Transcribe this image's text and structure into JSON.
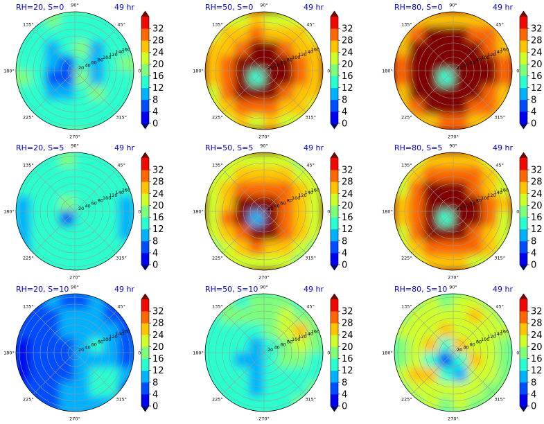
{
  "chart_data": {
    "type": "heatmap",
    "projection": "polar",
    "grid": true,
    "colormap": "jet",
    "colorbar": {
      "ticks": [
        "0",
        "4",
        "8",
        "12",
        "16",
        "20",
        "24",
        "28",
        "32"
      ],
      "range": [
        0,
        34
      ],
      "extend": "both",
      "colors": [
        "#00007f",
        "#0000f1",
        "#004dff",
        "#00b1ff",
        "#29ffce",
        "#7dff7a",
        "#ceff29",
        "#ffc400",
        "#ff6800",
        "#f10800",
        "#7f0000"
      ]
    },
    "angle_ticks": [
      "90°",
      "45°",
      "0°",
      "315°",
      "270°",
      "225°",
      "180°",
      "135°"
    ],
    "radial_ticks": [
      "20",
      "40",
      "60",
      "80",
      "100",
      "120",
      "140",
      "160"
    ],
    "panels": [
      {
        "title": "RH=20, S=0",
        "time": "49 hr",
        "rows": [
          [
            14,
            15,
            16,
            15,
            14,
            15,
            14,
            15
          ],
          [
            13,
            14,
            12,
            14,
            15,
            13,
            12,
            14
          ],
          [
            14,
            12,
            10,
            13,
            16,
            11,
            13,
            15
          ],
          [
            15,
            13,
            8,
            6,
            12,
            9,
            14,
            16
          ],
          [
            16,
            12,
            7,
            4,
            18,
            10,
            12,
            15
          ],
          [
            15,
            13,
            10,
            8,
            13,
            16,
            12,
            14
          ],
          [
            14,
            15,
            13,
            12,
            14,
            13,
            15,
            14
          ],
          [
            15,
            14,
            15,
            14,
            13,
            15,
            14,
            15
          ]
        ]
      },
      {
        "title": "RH=50, S=0",
        "time": "49 hr",
        "rows": [
          [
            19,
            22,
            21,
            24,
            20,
            23,
            21,
            20
          ],
          [
            22,
            25,
            26,
            28,
            27,
            24,
            26,
            23
          ],
          [
            24,
            27,
            31,
            33,
            32,
            30,
            27,
            25
          ],
          [
            26,
            29,
            33,
            34,
            34,
            33,
            28,
            24
          ],
          [
            25,
            30,
            34,
            12,
            34,
            32,
            29,
            26
          ],
          [
            23,
            28,
            32,
            34,
            33,
            31,
            27,
            24
          ],
          [
            22,
            26,
            28,
            30,
            29,
            27,
            25,
            22
          ],
          [
            20,
            23,
            24,
            22,
            25,
            23,
            21,
            20
          ]
        ]
      },
      {
        "title": "RH=80, S=0",
        "time": "49 hr",
        "rows": [
          [
            21,
            24,
            26,
            27,
            27,
            25,
            24,
            21
          ],
          [
            24,
            29,
            32,
            33,
            33,
            31,
            28,
            24
          ],
          [
            27,
            32,
            34,
            34,
            34,
            33,
            31,
            27
          ],
          [
            28,
            33,
            34,
            34,
            34,
            34,
            32,
            28
          ],
          [
            28,
            33,
            34,
            14,
            34,
            34,
            32,
            28
          ],
          [
            27,
            32,
            34,
            34,
            34,
            34,
            31,
            26
          ],
          [
            25,
            29,
            32,
            33,
            33,
            31,
            28,
            24
          ],
          [
            22,
            24,
            27,
            28,
            28,
            26,
            24,
            21
          ]
        ]
      },
      {
        "title": "RH=20, S=5",
        "time": "49 hr",
        "rows": [
          [
            14,
            15,
            14,
            16,
            15,
            14,
            15,
            14
          ],
          [
            13,
            14,
            15,
            14,
            13,
            15,
            14,
            13
          ],
          [
            12,
            13,
            14,
            15,
            14,
            13,
            14,
            12
          ],
          [
            10,
            13,
            15,
            16,
            15,
            14,
            13,
            11
          ],
          [
            9,
            12,
            14,
            5,
            14,
            13,
            12,
            10
          ],
          [
            8,
            12,
            13,
            14,
            15,
            14,
            13,
            11
          ],
          [
            10,
            13,
            14,
            13,
            14,
            12,
            13,
            12
          ],
          [
            12,
            14,
            13,
            14,
            13,
            14,
            12,
            13
          ]
        ]
      },
      {
        "title": "RH=50, S=5",
        "time": "49 hr",
        "rows": [
          [
            18,
            20,
            22,
            21,
            23,
            21,
            19,
            18
          ],
          [
            20,
            23,
            25,
            26,
            27,
            25,
            22,
            20
          ],
          [
            22,
            25,
            29,
            31,
            30,
            28,
            24,
            21
          ],
          [
            23,
            27,
            32,
            34,
            33,
            30,
            26,
            22
          ],
          [
            22,
            28,
            34,
            11,
            33,
            31,
            25,
            21
          ],
          [
            21,
            26,
            31,
            33,
            32,
            28,
            24,
            20
          ],
          [
            19,
            23,
            26,
            28,
            27,
            25,
            22,
            19
          ],
          [
            18,
            20,
            22,
            23,
            22,
            21,
            19,
            18
          ]
        ]
      },
      {
        "title": "RH=80, S=5",
        "time": "49 hr",
        "rows": [
          [
            19,
            22,
            24,
            25,
            26,
            24,
            22,
            19
          ],
          [
            21,
            25,
            28,
            30,
            31,
            28,
            25,
            21
          ],
          [
            23,
            28,
            32,
            34,
            33,
            31,
            27,
            23
          ],
          [
            24,
            29,
            34,
            34,
            34,
            33,
            28,
            24
          ],
          [
            24,
            30,
            34,
            14,
            34,
            33,
            28,
            23
          ],
          [
            23,
            28,
            33,
            34,
            34,
            31,
            27,
            22
          ],
          [
            21,
            25,
            29,
            31,
            30,
            28,
            25,
            21
          ],
          [
            19,
            22,
            25,
            26,
            25,
            23,
            21,
            19
          ]
        ]
      },
      {
        "title": "RH=20, S=10",
        "time": "49 hr",
        "rows": [
          [
            6,
            7,
            8,
            7,
            6,
            8,
            7,
            8
          ],
          [
            5,
            6,
            7,
            9,
            8,
            9,
            7,
            6
          ],
          [
            4,
            5,
            7,
            8,
            10,
            9,
            8,
            6
          ],
          [
            3,
            4,
            6,
            7,
            9,
            12,
            10,
            7
          ],
          [
            3,
            4,
            5,
            6,
            11,
            10,
            9,
            6
          ],
          [
            3,
            4,
            5,
            7,
            10,
            12,
            13,
            8
          ],
          [
            4,
            5,
            6,
            8,
            11,
            13,
            12,
            7
          ],
          [
            5,
            6,
            7,
            8,
            9,
            10,
            8,
            6
          ]
        ]
      },
      {
        "title": "RH=50, S=10",
        "time": "49 hr",
        "rows": [
          [
            15,
            16,
            15,
            16,
            17,
            16,
            15,
            16
          ],
          [
            15,
            16,
            17,
            16,
            18,
            20,
            18,
            16
          ],
          [
            14,
            15,
            15,
            14,
            17,
            22,
            24,
            18
          ],
          [
            14,
            13,
            12,
            11,
            15,
            19,
            22,
            17
          ],
          [
            14,
            12,
            10,
            8,
            13,
            16,
            17,
            15
          ],
          [
            14,
            13,
            12,
            11,
            13,
            14,
            15,
            15
          ],
          [
            15,
            14,
            12,
            11,
            12,
            14,
            15,
            16
          ],
          [
            16,
            15,
            14,
            15,
            14,
            15,
            16,
            16
          ]
        ]
      },
      {
        "title": "RH=80, S=10",
        "time": "49 hr",
        "rows": [
          [
            18,
            19,
            20,
            19,
            21,
            20,
            19,
            18
          ],
          [
            19,
            20,
            22,
            23,
            22,
            24,
            21,
            19
          ],
          [
            20,
            21,
            20,
            26,
            22,
            21,
            23,
            20
          ],
          [
            19,
            22,
            27,
            15,
            24,
            20,
            22,
            19
          ],
          [
            19,
            21,
            14,
            6,
            12,
            26,
            21,
            19
          ],
          [
            20,
            24,
            26,
            12,
            10,
            22,
            20,
            18
          ],
          [
            19,
            21,
            22,
            20,
            21,
            20,
            19,
            18
          ],
          [
            18,
            19,
            20,
            19,
            20,
            19,
            18,
            18
          ]
        ]
      }
    ]
  }
}
